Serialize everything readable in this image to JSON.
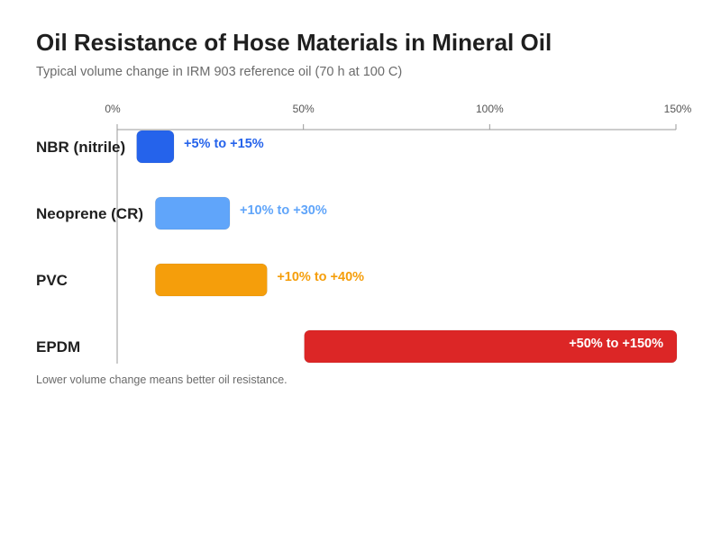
{
  "title": "Oil Resistance of Hose Materials in Mineral Oil",
  "subtitle": "Typical volume change in IRM 903 reference oil (70 h at 100 C)",
  "footnote": "Lower volume change means better oil resistance.",
  "chart_data": {
    "type": "bar",
    "orientation": "horizontal",
    "range_bars": true,
    "title": "Oil Resistance of Hose Materials in Mineral Oil",
    "subtitle": "Typical volume change in IRM 903 reference oil (70 h at 100 C)",
    "xlabel": "",
    "ylabel": "",
    "x_ticks": [
      {
        "value": 0,
        "label": "0%"
      },
      {
        "value": 50,
        "label": "50%"
      },
      {
        "value": 100,
        "label": "100%"
      },
      {
        "value": 150,
        "label": "150%"
      }
    ],
    "xlim": [
      0,
      150
    ],
    "x_axis_position": "top",
    "grid": false,
    "legend": "none",
    "categories": [
      "NBR (nitrile)",
      "Neoprene (CR)",
      "PVC",
      "EPDM"
    ],
    "bars": [
      {
        "category": "NBR (nitrile)",
        "min": 5,
        "max": 15,
        "label": "+5% to +15%",
        "color": "#2563eb",
        "label_placement": "outside",
        "label_color": "#2563eb"
      },
      {
        "category": "Neoprene (CR)",
        "min": 10,
        "max": 30,
        "label": "+10% to +30%",
        "color": "#60a5fa",
        "label_placement": "outside",
        "label_color": "#60a5fa"
      },
      {
        "category": "PVC",
        "min": 10,
        "max": 40,
        "label": "+10% to +40%",
        "color": "#f59e0b",
        "label_placement": "outside",
        "label_color": "#f59e0b"
      },
      {
        "category": "EPDM",
        "min": 50,
        "max": 150,
        "label": "+50% to +150%",
        "color": "#dc2626",
        "label_placement": "inside",
        "label_color": "#ffffff"
      }
    ],
    "footnote": "Lower volume change means better oil resistance."
  }
}
